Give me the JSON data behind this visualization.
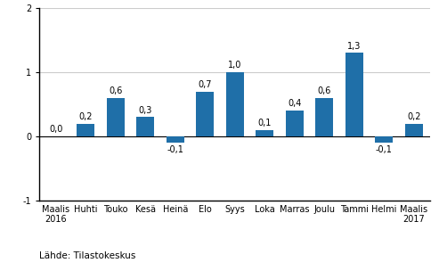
{
  "categories": [
    "Maalis\n2016",
    "Huhti",
    "Touko",
    "Kesä",
    "Heinä",
    "Elo",
    "Syys",
    "Loka",
    "Marras",
    "Joulu",
    "Tammi",
    "Helmi",
    "Maalis\n2017"
  ],
  "values": [
    0.0,
    0.2,
    0.6,
    0.3,
    -0.1,
    0.7,
    1.0,
    0.1,
    0.4,
    0.6,
    1.3,
    -0.1,
    0.2
  ],
  "bar_color": "#1f6fa8",
  "ylim": [
    -1.0,
    2.0
  ],
  "yticks": [
    -1,
    0,
    1,
    2
  ],
  "bar_width": 0.6,
  "footnote": "Lähde: Tilastokeskus",
  "label_fontsize": 7,
  "tick_fontsize": 7,
  "footnote_fontsize": 7.5,
  "background_color": "#ffffff",
  "grid_color": "#cccccc"
}
